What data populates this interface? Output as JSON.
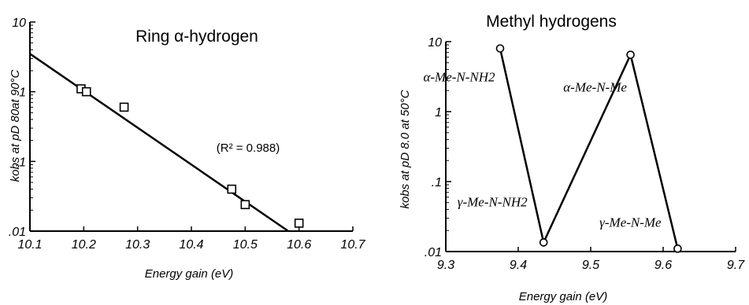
{
  "chart_data": [
    {
      "type": "scatter",
      "title": "Ring α-hydrogen",
      "xlabel": "Energy gain (eV)",
      "ylabel": "kobs at pD 80at 90°C",
      "xlim": [
        10.1,
        10.7
      ],
      "ylim": [
        0.01,
        10
      ],
      "yscale": "log",
      "x_ticks": [
        "10.1",
        "10.2",
        "10.3",
        "10.4",
        "10.5",
        "10.6",
        "10.7"
      ],
      "y_ticks": [
        "10",
        "1",
        ".1",
        ".01"
      ],
      "marker": "open-square",
      "points": [
        {
          "x": 10.195,
          "y": 1.1
        },
        {
          "x": 10.205,
          "y": 1.0
        },
        {
          "x": 10.275,
          "y": 0.6
        },
        {
          "x": 10.475,
          "y": 0.04
        },
        {
          "x": 10.5,
          "y": 0.024
        },
        {
          "x": 10.6,
          "y": 0.013
        }
      ],
      "fit_line": {
        "x": [
          10.1,
          10.58
        ],
        "y": [
          3.5,
          0.01
        ]
      },
      "annotation": "(R² = 0.988)"
    },
    {
      "type": "line",
      "title": "Methyl hydrogens",
      "xlabel": "Energy gain (eV)",
      "ylabel": "kobs at pD 8.0 at 50°C",
      "xlim": [
        9.3,
        9.7
      ],
      "ylim": [
        0.01,
        10
      ],
      "yscale": "log",
      "x_ticks": [
        "9.3",
        "9.4",
        "9.5",
        "9.6",
        "9.7"
      ],
      "y_ticks": [
        "10",
        "1",
        ".1",
        ".01"
      ],
      "marker": "open-circle",
      "points": [
        {
          "x": 9.375,
          "y": 8.0,
          "label": "α-Me-N-NH2"
        },
        {
          "x": 9.435,
          "y": 0.0135,
          "label": "γ-Me-N-NH2"
        },
        {
          "x": 9.555,
          "y": 6.5,
          "label": "α-Me-N-Me"
        },
        {
          "x": 9.62,
          "y": 0.011,
          "label": "γ-Me-N-Me"
        }
      ]
    }
  ]
}
